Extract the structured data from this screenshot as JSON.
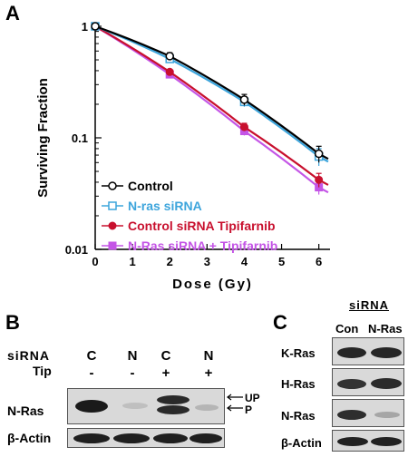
{
  "panels": {
    "a": "A",
    "b": "B",
    "c": "C"
  },
  "chart_data": {
    "type": "line",
    "xlabel": "Dose (Gy)",
    "ylabel": "Surviving Fraction",
    "xlim": [
      0,
      6.3
    ],
    "ylim": [
      0.01,
      1
    ],
    "yscale": "log",
    "x_ticks": [
      "0",
      "1",
      "2",
      "3",
      "4",
      "5",
      "6"
    ],
    "y_ticks": [
      "1",
      "0.1",
      "0.01"
    ],
    "legend_position": "bottom-left",
    "series": [
      {
        "name": "Control",
        "color": "#000000",
        "marker": "open-circle",
        "x": [
          0,
          2,
          4,
          6
        ],
        "y": [
          1,
          0.54,
          0.22,
          0.072
        ],
        "err": [
          0,
          0.04,
          0.025,
          0.012
        ]
      },
      {
        "name": "N-ras siRNA",
        "color": "#3da5dc",
        "marker": "open-square",
        "x": [
          0,
          2,
          4,
          6
        ],
        "y": [
          1,
          0.51,
          0.21,
          0.068
        ],
        "err": [
          0,
          0.04,
          0.02,
          0.012
        ]
      },
      {
        "name": "Control  siRNA Tipifarnib",
        "color": "#c8102e",
        "marker": "filled-circle",
        "x": [
          0,
          2,
          4,
          6
        ],
        "y": [
          1,
          0.39,
          0.125,
          0.042
        ],
        "err": [
          0,
          0.02,
          0.01,
          0.006
        ]
      },
      {
        "name": "N-Ras siRNA + Tipifarnib",
        "color": "#c455e6",
        "marker": "filled-square",
        "x": [
          0,
          2,
          4,
          6
        ],
        "y": [
          1,
          0.37,
          0.115,
          0.036
        ],
        "err": [
          0,
          0.02,
          0.01,
          0.005
        ]
      }
    ]
  },
  "panel_b": {
    "row1_label": "siRNA",
    "row2_label": "Tip",
    "lanes": [
      {
        "sirna": "C",
        "tip": "-"
      },
      {
        "sirna": "N",
        "tip": "-"
      },
      {
        "sirna": "C",
        "tip": "+"
      },
      {
        "sirna": "N",
        "tip": "+"
      }
    ],
    "blot1_label": "N-Ras",
    "blot2_label": "β-Actin",
    "arrow_up": "UP",
    "arrow_p": "P"
  },
  "panel_c": {
    "header": "siRNA",
    "columns": [
      "Con",
      "N-Ras"
    ],
    "rows": [
      "K-Ras",
      "H-Ras",
      "N-Ras",
      "β-Actin"
    ]
  }
}
